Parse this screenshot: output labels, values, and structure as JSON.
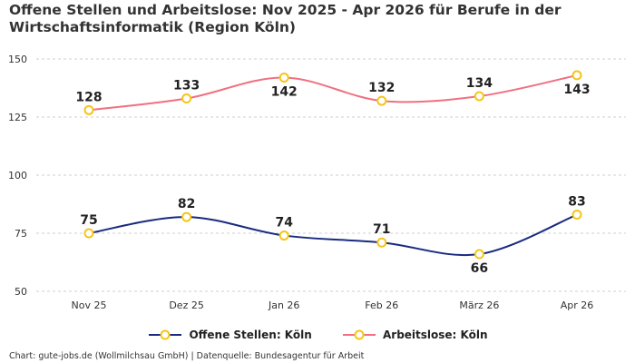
{
  "title": "Offene Stellen und Arbeitslose: Nov 2025 - Apr 2026 für Berufe in der Wirtschaftsinformatik (Region Köln)",
  "footer": "Chart: gute-jobs.de (Wollmilchsau GmbH) | Datenquelle: Bundesagentur für Arbeit",
  "chart_data": {
    "type": "line",
    "categories": [
      "Nov 25",
      "Dez 25",
      "Jan 26",
      "Feb 26",
      "März 26",
      "Apr 26"
    ],
    "series": [
      {
        "name": "Offene Stellen: Köln",
        "values": [
          75,
          82,
          74,
          71,
          66,
          83
        ],
        "color": "#1a2a80"
      },
      {
        "name": "Arbeitslose: Köln",
        "values": [
          128,
          133,
          142,
          132,
          134,
          143
        ],
        "color": "#f07080"
      }
    ],
    "yticks": [
      50,
      75,
      100,
      125,
      150
    ],
    "ylim": [
      50,
      150
    ],
    "grid": true,
    "legend_position": "bottom",
    "marker_color": "#f5c518"
  }
}
